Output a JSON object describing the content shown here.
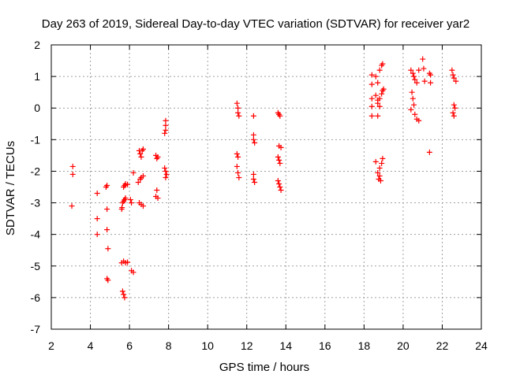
{
  "colors": {
    "marker": "#ff0000",
    "grid": "#a0a0a0",
    "axis": "#000000",
    "background": "#ffffff"
  },
  "chart_data": {
    "type": "scatter",
    "title": "Day 263 of 2019, Sidereal Day-to-day VTEC variation (SDTVAR) for receiver yar2",
    "xlabel": "GPS time / hours",
    "ylabel": "SDTVAR / TECUs",
    "xlim": [
      2,
      24
    ],
    "ylim": [
      -7,
      2
    ],
    "xticks": [
      2,
      4,
      6,
      8,
      10,
      12,
      14,
      16,
      18,
      20,
      22,
      24
    ],
    "yticks": [
      -7,
      -6,
      -5,
      -4,
      -3,
      -2,
      -1,
      0,
      1,
      2
    ],
    "grid": true,
    "marker": "+",
    "series": [
      {
        "name": "SDTVAR",
        "points": [
          [
            3.1,
            -1.85
          ],
          [
            3.1,
            -2.1
          ],
          [
            3.05,
            -3.1
          ],
          [
            4.35,
            -2.7
          ],
          [
            4.35,
            -3.5
          ],
          [
            4.35,
            -4.0
          ],
          [
            4.8,
            -2.5
          ],
          [
            4.85,
            -2.45
          ],
          [
            4.85,
            -3.2
          ],
          [
            4.85,
            -3.85
          ],
          [
            4.9,
            -4.45
          ],
          [
            4.85,
            -5.4
          ],
          [
            4.9,
            -5.45
          ],
          [
            5.6,
            -3.2
          ],
          [
            5.62,
            -3.15
          ],
          [
            5.65,
            -3.0
          ],
          [
            5.7,
            -2.95
          ],
          [
            5.75,
            -2.9
          ],
          [
            5.8,
            -2.85
          ],
          [
            5.7,
            -2.5
          ],
          [
            5.75,
            -2.45
          ],
          [
            5.8,
            -2.4
          ],
          [
            5.9,
            -2.42
          ],
          [
            5.6,
            -4.9
          ],
          [
            5.7,
            -4.85
          ],
          [
            5.8,
            -4.9
          ],
          [
            5.9,
            -4.88
          ],
          [
            5.65,
            -5.8
          ],
          [
            5.7,
            -5.9
          ],
          [
            5.75,
            -6.0
          ],
          [
            6.05,
            -2.9
          ],
          [
            6.1,
            -3.0
          ],
          [
            6.2,
            -2.05
          ],
          [
            6.1,
            -5.15
          ],
          [
            6.2,
            -5.2
          ],
          [
            6.5,
            -1.35
          ],
          [
            6.55,
            -1.45
          ],
          [
            6.6,
            -1.55
          ],
          [
            6.65,
            -1.35
          ],
          [
            6.7,
            -1.3
          ],
          [
            6.45,
            -2.35
          ],
          [
            6.55,
            -2.25
          ],
          [
            6.6,
            -2.2
          ],
          [
            6.7,
            -2.15
          ],
          [
            6.5,
            -3.0
          ],
          [
            6.6,
            -3.05
          ],
          [
            6.7,
            -3.1
          ],
          [
            7.35,
            -1.5
          ],
          [
            7.4,
            -1.6
          ],
          [
            7.45,
            -1.55
          ],
          [
            7.4,
            -2.6
          ],
          [
            7.35,
            -2.8
          ],
          [
            7.45,
            -2.85
          ],
          [
            7.85,
            -0.4
          ],
          [
            7.85,
            -0.55
          ],
          [
            7.85,
            -0.7
          ],
          [
            7.8,
            -0.8
          ],
          [
            7.8,
            -1.9
          ],
          [
            7.85,
            -2.0
          ],
          [
            7.9,
            -2.1
          ],
          [
            7.85,
            -2.2
          ],
          [
            11.5,
            0.15
          ],
          [
            11.55,
            0.0
          ],
          [
            11.55,
            -0.15
          ],
          [
            11.6,
            -0.25
          ],
          [
            11.5,
            -1.45
          ],
          [
            11.55,
            -1.55
          ],
          [
            11.5,
            -1.85
          ],
          [
            11.55,
            -2.05
          ],
          [
            11.6,
            -2.2
          ],
          [
            12.35,
            -0.25
          ],
          [
            12.35,
            -0.85
          ],
          [
            12.35,
            -1.0
          ],
          [
            12.4,
            -1.1
          ],
          [
            12.35,
            -2.1
          ],
          [
            12.35,
            -2.25
          ],
          [
            12.4,
            -2.35
          ],
          [
            13.6,
            -0.15
          ],
          [
            13.65,
            -0.2
          ],
          [
            13.7,
            -0.25
          ],
          [
            13.65,
            -1.2
          ],
          [
            13.75,
            -1.25
          ],
          [
            13.6,
            -1.55
          ],
          [
            13.65,
            -1.65
          ],
          [
            13.7,
            -1.75
          ],
          [
            13.6,
            -2.3
          ],
          [
            13.65,
            -2.4
          ],
          [
            13.7,
            -2.5
          ],
          [
            13.75,
            -2.6
          ],
          [
            18.4,
            1.05
          ],
          [
            18.4,
            0.75
          ],
          [
            18.4,
            0.3
          ],
          [
            18.4,
            0.05
          ],
          [
            18.4,
            -0.25
          ],
          [
            18.6,
            1.0
          ],
          [
            18.7,
            0.8
          ],
          [
            18.8,
            1.2
          ],
          [
            18.9,
            1.35
          ],
          [
            18.95,
            1.4
          ],
          [
            18.6,
            0.4
          ],
          [
            18.7,
            0.25
          ],
          [
            18.8,
            0.3
          ],
          [
            18.9,
            0.45
          ],
          [
            18.95,
            0.55
          ],
          [
            19.0,
            0.6
          ],
          [
            18.7,
            0.15
          ],
          [
            18.8,
            0.05
          ],
          [
            18.7,
            -0.25
          ],
          [
            18.6,
            -1.7
          ],
          [
            18.8,
            -1.9
          ],
          [
            18.9,
            -1.75
          ],
          [
            18.95,
            -1.6
          ],
          [
            18.7,
            -2.05
          ],
          [
            18.8,
            -2.15
          ],
          [
            18.75,
            -2.25
          ],
          [
            18.85,
            -2.3
          ],
          [
            20.4,
            1.2
          ],
          [
            20.5,
            1.1
          ],
          [
            20.55,
            1.0
          ],
          [
            20.6,
            0.9
          ],
          [
            20.7,
            0.8
          ],
          [
            20.8,
            1.2
          ],
          [
            20.45,
            0.5
          ],
          [
            20.5,
            0.3
          ],
          [
            20.55,
            0.1
          ],
          [
            20.4,
            -0.05
          ],
          [
            20.6,
            -0.2
          ],
          [
            20.7,
            -0.35
          ],
          [
            20.8,
            -0.4
          ],
          [
            21.0,
            1.55
          ],
          [
            21.05,
            1.25
          ],
          [
            21.1,
            0.85
          ],
          [
            21.35,
            1.1
          ],
          [
            21.4,
            1.05
          ],
          [
            21.4,
            0.8
          ],
          [
            21.35,
            -1.4
          ],
          [
            22.5,
            1.2
          ],
          [
            22.55,
            1.05
          ],
          [
            22.6,
            0.95
          ],
          [
            22.7,
            0.85
          ],
          [
            22.6,
            0.1
          ],
          [
            22.65,
            0.0
          ],
          [
            22.55,
            -0.15
          ],
          [
            22.6,
            -0.25
          ]
        ]
      }
    ]
  }
}
